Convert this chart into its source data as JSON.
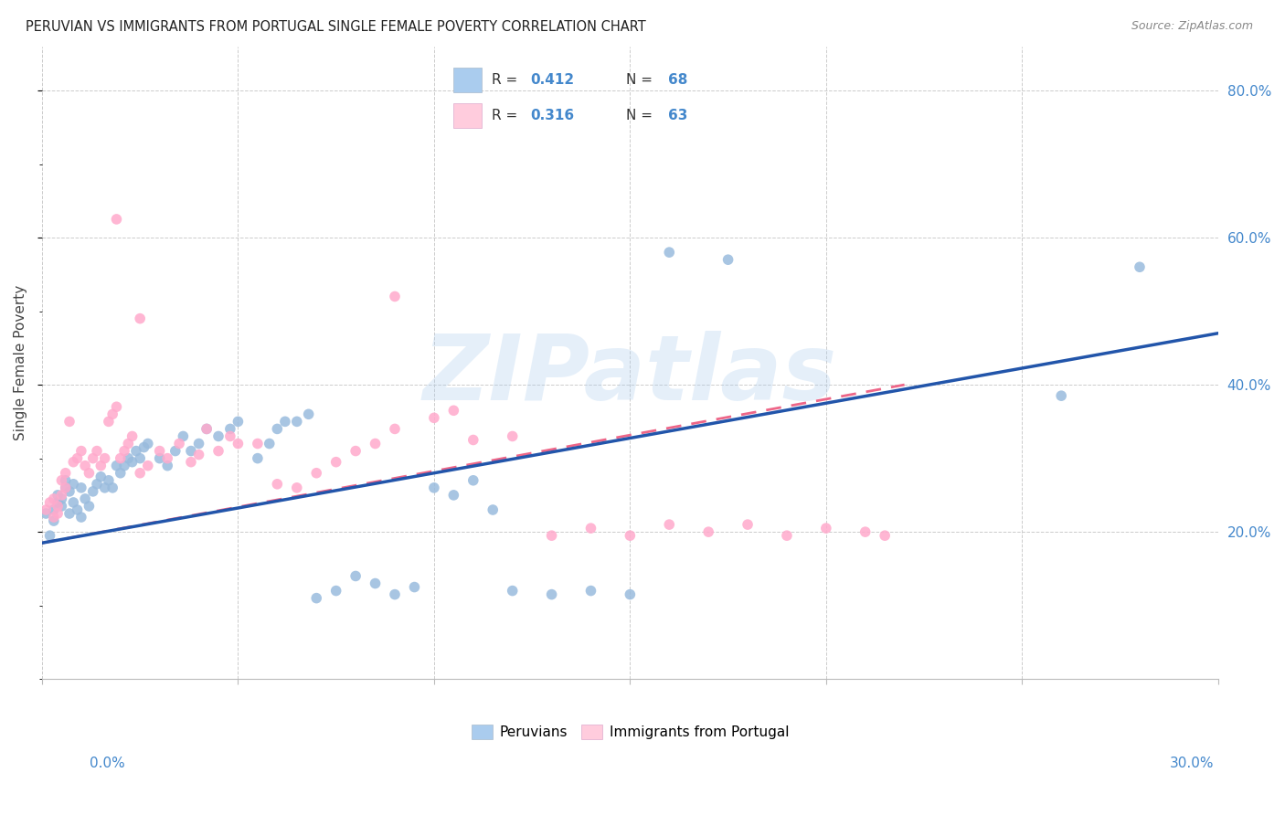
{
  "title": "PERUVIAN VS IMMIGRANTS FROM PORTUGAL SINGLE FEMALE POVERTY CORRELATION CHART",
  "source": "Source: ZipAtlas.com",
  "ylabel": "Single Female Poverty",
  "r_peru": 0.412,
  "n_peru": 68,
  "r_port": 0.316,
  "n_port": 63,
  "color_peru": "#99bbdd",
  "color_port": "#ffaacc",
  "color_peru_line": "#2255aa",
  "color_port_line": "#ee6688",
  "watermark_text": "ZIPatlas",
  "xlim": [
    0.0,
    0.3
  ],
  "ylim": [
    0.0,
    0.86
  ],
  "line_peru_x0": 0.0,
  "line_peru_y0": 0.185,
  "line_peru_x1": 0.3,
  "line_peru_y1": 0.47,
  "line_port_x0": 0.0,
  "line_port_y0": 0.185,
  "line_port_x1": 0.22,
  "line_port_y1": 0.4,
  "background_color": "#ffffff",
  "grid_color": "#cccccc",
  "legend_color_peru": "#aaccee",
  "legend_color_port": "#ffccdd"
}
